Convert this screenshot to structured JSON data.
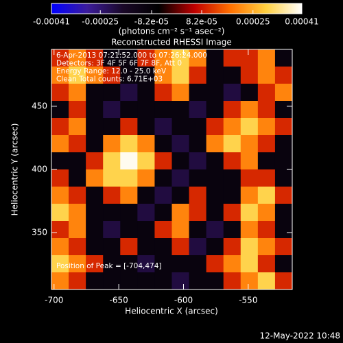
{
  "chart_data": {
    "type": "heatmap",
    "title": "Reconstructed RHESSI Image",
    "colorbar_label": "(photons cm⁻² s⁻¹ asec⁻²)",
    "x_label": "Heliocentric X (arcsec)",
    "y_label": "Heliocentric Y (arcsec)",
    "annotations": [
      "6-Apr-2013 07:21:52.000 to 07:26:24.000",
      "Detectors: 3F 4F 5F 6F 7F 8F, Att 0",
      "Energy Range: 12.0 - 25.0 keV",
      "Clean    Total counts: 6.71E+03"
    ],
    "peak_label": "Position of Peak = [-704,474]",
    "timestamp": "12-May-2022 10:48",
    "colormap": [
      "#0000ff",
      "#3c1c9c",
      "#1a0828",
      "#000000",
      "#c00000",
      "#ff7000",
      "#ffd040",
      "#ffffff"
    ],
    "clim": [
      -0.00041,
      0.00041
    ],
    "cticks": [
      -0.00041,
      -0.00025,
      {
        "value": -8.2e-05,
        "label": "-8.2e-05"
      },
      {
        "value": 8.2e-05,
        "label": "8.2e-05"
      },
      0.00025,
      0.00041
    ],
    "xlim": [
      -702,
      -516
    ],
    "xticks": [
      -700,
      -650,
      -600,
      -550
    ],
    "ylim": [
      305,
      495
    ],
    "yticks": [
      350,
      400,
      450
    ],
    "values": [
      [
        0.0001,
        0.0002,
        0.0001,
        -0.0001,
        -0.0001,
        0.0001,
        0.0002,
        0.0003,
        0.0002,
        -0.0001,
        0.0001,
        0.0001,
        0.0002,
        -0.0001
      ],
      [
        0.0002,
        0.0003,
        0.0002,
        0.0001,
        -0.0001,
        -0.0001,
        0.0002,
        0.0003,
        0.0001,
        -0.0001,
        -0.0001,
        0.0001,
        0.0002,
        0.0001
      ],
      [
        0.0001,
        0.0002,
        -0.0001,
        -0.0001,
        -0.0002,
        -0.0001,
        0.0001,
        0.0002,
        -0.0001,
        -0.0001,
        -0.0002,
        -0.0001,
        0.0001,
        0.0002
      ],
      [
        -0.0001,
        0.0001,
        -0.0001,
        -0.0002,
        -0.0001,
        -0.0001,
        -0.0001,
        -0.0001,
        -0.0002,
        -0.0001,
        0.0001,
        0.0002,
        0.0001,
        -0.0001
      ],
      [
        0.0001,
        0.0002,
        -0.0001,
        -0.0001,
        0.0001,
        -0.0001,
        -0.0002,
        -0.0001,
        -0.0001,
        0.0001,
        0.0002,
        0.0003,
        0.0002,
        0.0001
      ],
      [
        0.0002,
        0.0001,
        -0.0001,
        0.0002,
        0.0003,
        0.0002,
        -0.0001,
        -0.0002,
        -0.0001,
        0.0002,
        0.0003,
        0.0002,
        0.0001,
        -0.0001
      ],
      [
        -0.0001,
        -0.0001,
        0.0001,
        0.0003,
        0.0004,
        0.0003,
        0.0001,
        -0.0001,
        -0.0002,
        -0.0001,
        0.0001,
        0.0002,
        -0.0001,
        -0.0001
      ],
      [
        0.0001,
        -0.0001,
        0.0002,
        0.0003,
        0.0003,
        0.0002,
        -0.0001,
        -0.0002,
        -0.0001,
        -0.0001,
        -0.0001,
        0.0001,
        0.0001,
        -0.0001
      ],
      [
        0.0002,
        0.0001,
        -0.0001,
        0.0001,
        0.0002,
        -0.0001,
        -0.0002,
        -0.0001,
        0.0001,
        -0.0001,
        -0.0001,
        0.0002,
        0.0003,
        0.0001
      ],
      [
        0.0003,
        0.0002,
        -0.0001,
        -0.0001,
        -0.0001,
        -0.0002,
        -0.0001,
        0.0002,
        0.0001,
        -0.0001,
        0.0001,
        0.0003,
        0.0002,
        -0.0001
      ],
      [
        0.0001,
        0.0002,
        -0.0001,
        -0.0002,
        -0.0001,
        -0.0001,
        0.0001,
        0.0002,
        -0.0001,
        -0.0002,
        -0.0001,
        0.0002,
        0.0001,
        -0.0001
      ],
      [
        0.0002,
        0.0001,
        -0.0001,
        -0.0001,
        0.0001,
        -0.0001,
        -0.0001,
        0.0001,
        -0.0002,
        -0.0001,
        0.0001,
        0.0003,
        0.0002,
        0.0001
      ],
      [
        0.0003,
        0.0002,
        0.0001,
        -0.0001,
        -0.0001,
        -0.0002,
        -0.0001,
        -0.0001,
        -0.0001,
        0.0001,
        0.0002,
        0.0003,
        0.0001,
        -0.0001
      ],
      [
        0.0002,
        0.0001,
        -0.0001,
        -0.0001,
        -0.0001,
        -0.0001,
        -0.0001,
        -0.0002,
        -0.0001,
        -0.0001,
        0.0001,
        0.0002,
        0.0003,
        0.0001
      ]
    ]
  }
}
